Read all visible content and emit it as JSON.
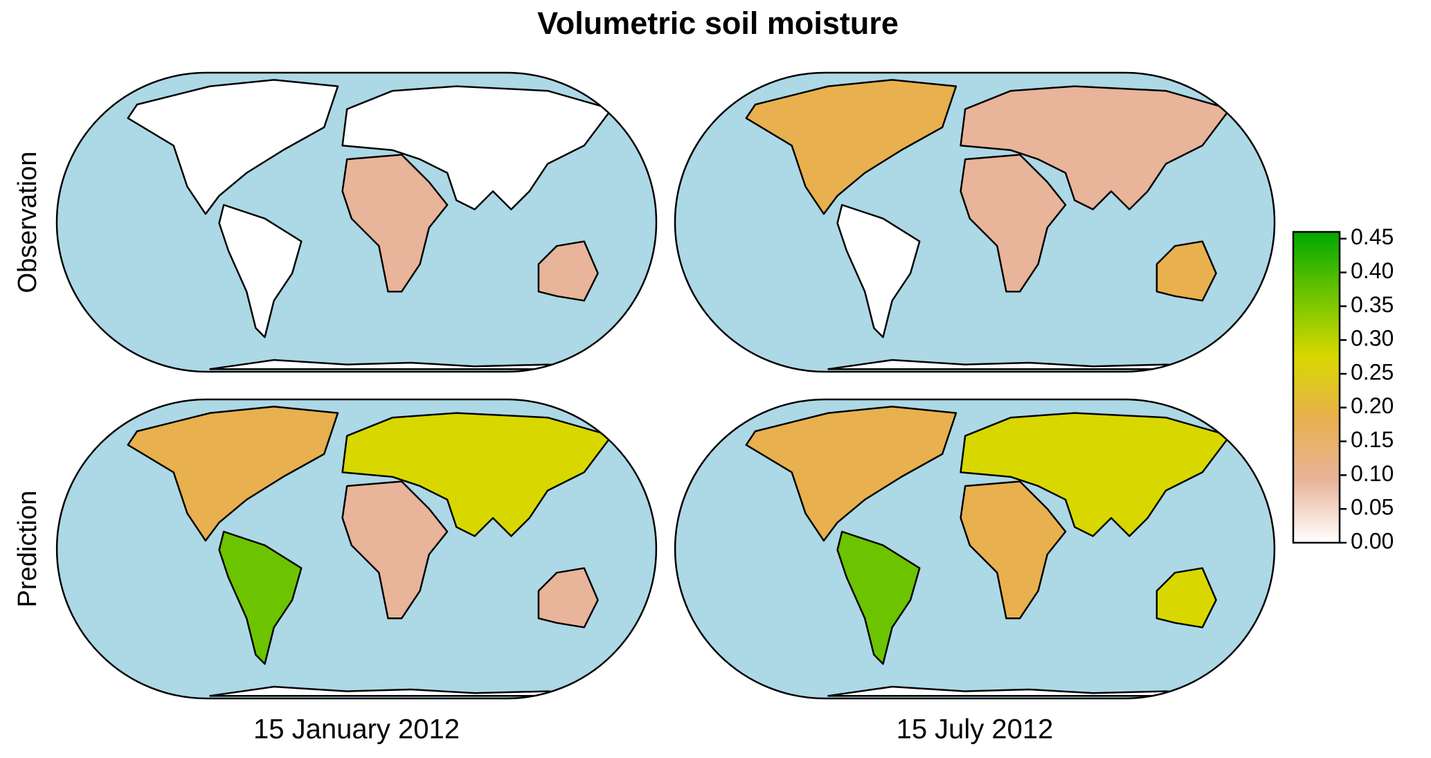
{
  "title": "Volumetric soil moisture",
  "rows": [
    "Observation",
    "Prediction"
  ],
  "columns": [
    "15 January 2012",
    "15 July 2012"
  ],
  "colorbar": {
    "lim": [
      0,
      0.46
    ],
    "colors": [
      "#ffffff",
      "#e8b49a",
      "#e8b04e",
      "#d8d800",
      "#6cc400",
      "#00a600"
    ],
    "ticks": [
      {
        "value": 0,
        "label": "0.00"
      },
      0.05,
      {
        "value": 0.1,
        "label": "0.10"
      },
      0.15,
      {
        "value": 0.2,
        "label": "0.20"
      },
      0.25,
      {
        "value": 0.3,
        "label": "0.30"
      },
      0.35,
      {
        "value": 0.4,
        "label": "0.40"
      },
      0.45
    ]
  }
}
